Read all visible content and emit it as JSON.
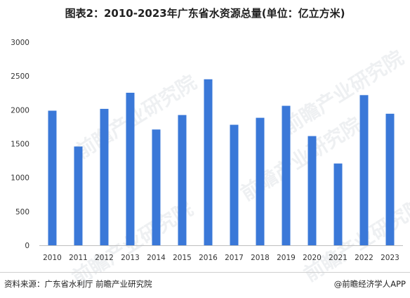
{
  "chart_data": {
    "type": "bar",
    "title": "图表2：2010-2023年广东省水资源总量(单位：亿立方米)",
    "categories": [
      "2010",
      "2011",
      "2012",
      "2013",
      "2014",
      "2015",
      "2016",
      "2017",
      "2018",
      "2019",
      "2020",
      "2021",
      "2022",
      "2023"
    ],
    "series": [
      {
        "values": [
          1988,
          1459,
          2015,
          2253,
          1710,
          1924,
          2452,
          1780,
          1883,
          2060,
          1613,
          1208,
          2218,
          1943
        ]
      }
    ],
    "ylim": [
      0,
      3000
    ],
    "yticks": [
      0,
      500,
      1000,
      1500,
      2000,
      2500,
      3000
    ],
    "xlabel": "",
    "ylabel": "",
    "grid": false,
    "legend": "none",
    "bar_color": "#3a78d8"
  },
  "footer": {
    "source": "资料来源：广东省水利厅 前瞻产业研究院",
    "credit": "@前瞻经济学人APP"
  },
  "watermark": {
    "text": "前瞻产业研究院"
  }
}
